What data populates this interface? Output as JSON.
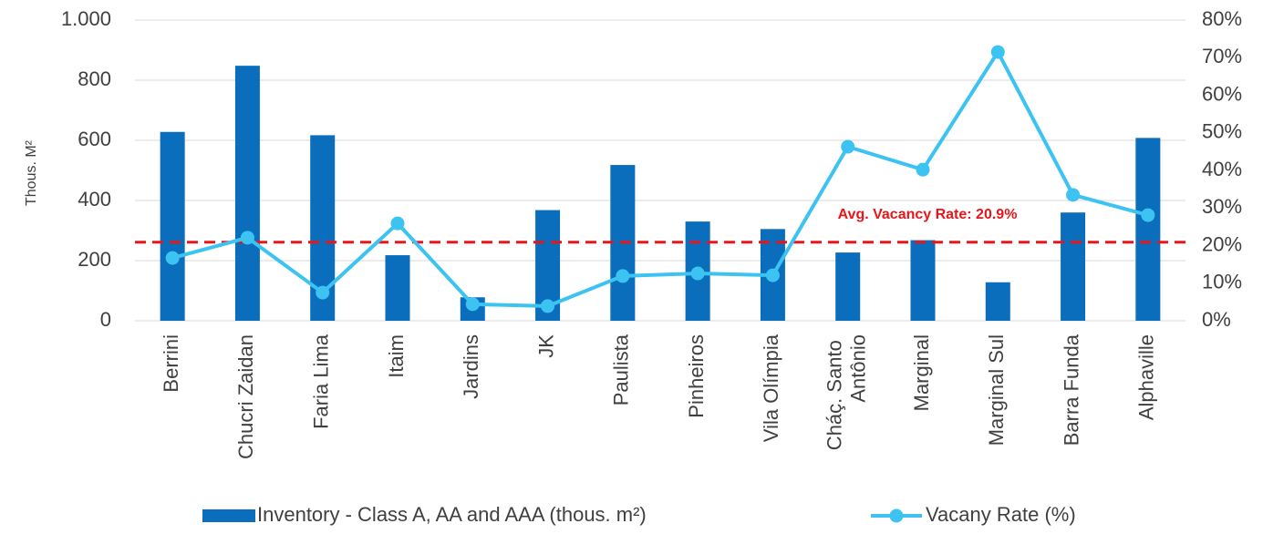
{
  "chart_data": {
    "type": "bar_line",
    "y_label": "Thous. M²",
    "categories": [
      "Berrini",
      "Chucri Zaidan",
      "Faria Lima",
      "Itaim",
      "Jardins",
      "JK",
      "Paulista",
      "Pinheiros",
      "Vila Olímpia",
      "Cháç. Santo Antônio",
      "Marginal",
      "Marginal Sul",
      "Barra Funda",
      "Alphaville"
    ],
    "series": [
      {
        "name": "Inventory - Class A, AA and AAA (thous. m²)",
        "type": "bar",
        "color": "#0a6ebd",
        "values": [
          628,
          848,
          617,
          218,
          78,
          368,
          518,
          330,
          305,
          227,
          268,
          128,
          360,
          608
        ]
      },
      {
        "name": "Vacany Rate (%)",
        "type": "line",
        "axis": "y2",
        "color": "#3cc3f2",
        "values": [
          16.7,
          22.1,
          7.5,
          25.9,
          4.4,
          3.9,
          11.9,
          12.6,
          12.1,
          46.3,
          40.2,
          71.5,
          33.5,
          28.1
        ]
      }
    ],
    "ylim": [
      0,
      1000
    ],
    "yticks": [
      0,
      200,
      400,
      600,
      800,
      {
        "value": 1000,
        "label": "1.000"
      }
    ],
    "y2lim": [
      0,
      80
    ],
    "y2ticks": [
      {
        "value": 0,
        "label": "0%"
      },
      {
        "value": 10,
        "label": "10%"
      },
      {
        "value": 20,
        "label": "20%"
      },
      {
        "value": 30,
        "label": "30%"
      },
      {
        "value": 40,
        "label": "40%"
      },
      {
        "value": 50,
        "label": "50%"
      },
      {
        "value": 60,
        "label": "60%"
      },
      {
        "value": 70,
        "label": "70%"
      },
      {
        "value": 80,
        "label": "80%"
      }
    ],
    "avg_line": {
      "value": 20.9,
      "label": "Avg. Vacancy Rate: 20.9%",
      "color": "#e8161a"
    },
    "grid": true
  }
}
